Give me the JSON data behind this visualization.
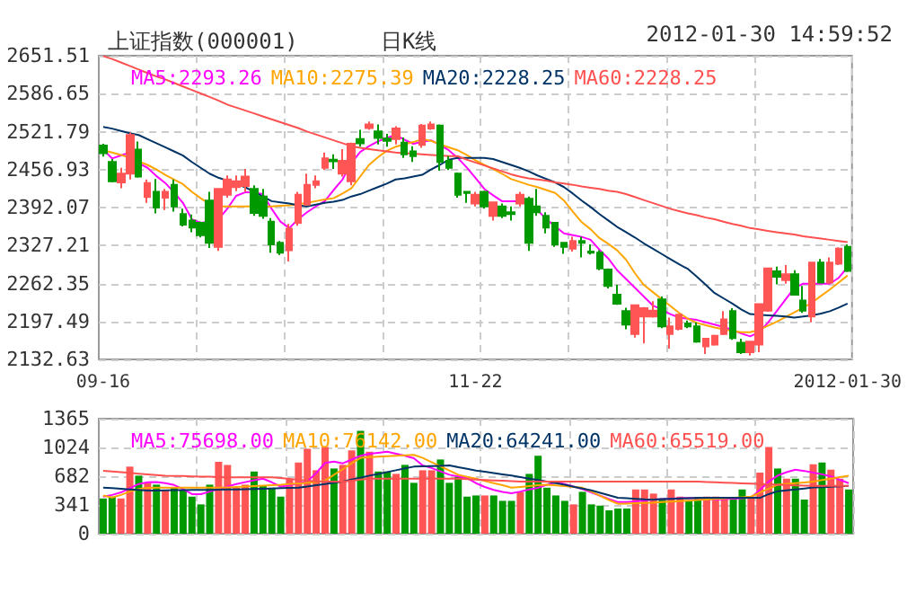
{
  "chart_data": [
    {
      "type": "candlestick",
      "title": "上证指数(000001)",
      "subtitle": "日K线",
      "annotations": [
        "2012-01-30 14:59:52"
      ],
      "categories": [
        "09-16",
        null,
        null,
        null,
        null,
        null,
        null,
        null,
        null,
        null,
        null,
        null,
        null,
        null,
        null,
        null,
        null,
        null,
        null,
        null,
        null,
        null,
        null,
        null,
        null,
        null,
        null,
        null,
        null,
        null,
        null,
        null,
        null,
        null,
        null,
        null,
        null,
        null,
        null,
        null,
        null,
        null,
        "11-22",
        null,
        null,
        null,
        null,
        null,
        null,
        null,
        null,
        null,
        null,
        null,
        null,
        null,
        null,
        null,
        null,
        null,
        null,
        null,
        null,
        null,
        null,
        null,
        null,
        null,
        null,
        null,
        null,
        null,
        null,
        null,
        null,
        null,
        null,
        null,
        null,
        null,
        null,
        null,
        null,
        null,
        "2012-01-30"
      ],
      "ohlc": [
        [
          2498,
          2501,
          2479,
          2485
        ],
        [
          2470,
          2475,
          2435,
          2437
        ],
        [
          2435,
          2460,
          2425,
          2450
        ],
        [
          2450,
          2520,
          2440,
          2516
        ],
        [
          2491,
          2505,
          2443,
          2445
        ],
        [
          2410,
          2440,
          2400,
          2434
        ],
        [
          2419,
          2441,
          2382,
          2392
        ],
        [
          2409,
          2424,
          2388,
          2419
        ],
        [
          2431,
          2440,
          2385,
          2394
        ],
        [
          2381,
          2390,
          2360,
          2363
        ],
        [
          2370,
          2380,
          2350,
          2358
        ],
        [
          2366,
          2368,
          2341,
          2345
        ],
        [
          2404,
          2419,
          2323,
          2332
        ],
        [
          2325,
          2424,
          2318,
          2424
        ],
        [
          2414,
          2447,
          2409,
          2440
        ],
        [
          2427,
          2447,
          2420,
          2437
        ],
        [
          2429,
          2458,
          2419,
          2445
        ],
        [
          2424,
          2430,
          2378,
          2383
        ],
        [
          2411,
          2424,
          2373,
          2378
        ],
        [
          2368,
          2374,
          2315,
          2329
        ],
        [
          2332,
          2335,
          2311,
          2315
        ],
        [
          2319,
          2364,
          2300,
          2356
        ],
        [
          2366,
          2419,
          2361,
          2414
        ],
        [
          2397,
          2450,
          2397,
          2431
        ],
        [
          2431,
          2447,
          2425,
          2437
        ],
        [
          2460,
          2486,
          2456,
          2476
        ],
        [
          2474,
          2483,
          2458,
          2471
        ],
        [
          2450,
          2492,
          2445,
          2472
        ],
        [
          2437,
          2503,
          2430,
          2501
        ],
        [
          2509,
          2525,
          2496,
          2502
        ],
        [
          2528,
          2539,
          2525,
          2534
        ],
        [
          2522,
          2534,
          2500,
          2511
        ],
        [
          2510,
          2518,
          2496,
          2506
        ],
        [
          2509,
          2531,
          2500,
          2527
        ],
        [
          2503,
          2512,
          2477,
          2483
        ],
        [
          2488,
          2497,
          2470,
          2480
        ],
        [
          2499,
          2535,
          2494,
          2532
        ],
        [
          2527,
          2539,
          2525,
          2534
        ],
        [
          2532,
          2534,
          2455,
          2470
        ],
        [
          2472,
          2480,
          2456,
          2460
        ],
        [
          2450,
          2452,
          2409,
          2414
        ],
        [
          2419,
          2420,
          2400,
          2417
        ],
        [
          2399,
          2419,
          2394,
          2414
        ],
        [
          2419,
          2421,
          2390,
          2394
        ],
        [
          2378,
          2401,
          2370,
          2401
        ],
        [
          2394,
          2399,
          2374,
          2378
        ],
        [
          2384,
          2394,
          2370,
          2381
        ],
        [
          2399,
          2419,
          2394,
          2414
        ],
        [
          2407,
          2411,
          2318,
          2332
        ],
        [
          2394,
          2424,
          2378,
          2384
        ],
        [
          2378,
          2384,
          2348,
          2358
        ],
        [
          2366,
          2366,
          2325,
          2329
        ],
        [
          2332,
          2332,
          2313,
          2325
        ],
        [
          2322,
          2342,
          2317,
          2335
        ],
        [
          2335,
          2342,
          2307,
          2332
        ],
        [
          2317,
          2329,
          2312,
          2315
        ],
        [
          2315,
          2319,
          2285,
          2288
        ],
        [
          2286,
          2288,
          2254,
          2258
        ],
        [
          2243,
          2260,
          2226,
          2228
        ],
        [
          2215,
          2221,
          2184,
          2192
        ],
        [
          2176,
          2226,
          2170,
          2225
        ],
        [
          2206,
          2222,
          2160,
          2220
        ],
        [
          2206,
          2232,
          2204,
          2216
        ],
        [
          2235,
          2240,
          2186,
          2189
        ],
        [
          2176,
          2204,
          2151,
          2189
        ],
        [
          2185,
          2209,
          2182,
          2209
        ],
        [
          2194,
          2199,
          2186,
          2189
        ],
        [
          2189,
          2196,
          2161,
          2163
        ],
        [
          2155,
          2168,
          2142,
          2168
        ],
        [
          2158,
          2175,
          2156,
          2173
        ],
        [
          2176,
          2215,
          2174,
          2201
        ],
        [
          2215,
          2220,
          2166,
          2169
        ],
        [
          2161,
          2168,
          2142,
          2145
        ],
        [
          2145,
          2163,
          2139,
          2163
        ],
        [
          2158,
          2227,
          2145,
          2227
        ],
        [
          2216,
          2288,
          2214,
          2288
        ],
        [
          2283,
          2291,
          2261,
          2274
        ],
        [
          2268,
          2294,
          2262,
          2278
        ],
        [
          2278,
          2285,
          2243,
          2243
        ],
        [
          2233,
          2258,
          2212,
          2216
        ],
        [
          2206,
          2298,
          2196,
          2298
        ],
        [
          2298,
          2304,
          2264,
          2264
        ],
        [
          2264,
          2307,
          2262,
          2298
        ],
        [
          2296,
          2324,
          2294,
          2322
        ],
        [
          2325,
          2329,
          2282,
          2284
        ]
      ],
      "colors": [
        "#009900",
        "#009900",
        "#ff5555",
        "#ff5555",
        "#009900",
        "#ff5555",
        "#009900",
        "#ff5555",
        "#009900",
        "#009900",
        "#009900",
        "#009900",
        "#009900",
        "#ff5555",
        "#ff5555",
        "#ff5555",
        "#ff5555",
        "#009900",
        "#009900",
        "#009900",
        "#009900",
        "#ff5555",
        "#ff5555",
        "#ff5555",
        "#ff5555",
        "#ff5555",
        "#009900",
        "#ff5555",
        "#ff5555",
        "#009900",
        "#ff5555",
        "#009900",
        "#009900",
        "#ff5555",
        "#009900",
        "#009900",
        "#ff5555",
        "#ff5555",
        "#009900",
        "#009900",
        "#009900",
        "#009900",
        "#ff5555",
        "#009900",
        "#ff5555",
        "#009900",
        "#009900",
        "#ff5555",
        "#009900",
        "#009900",
        "#009900",
        "#009900",
        "#009900",
        "#ff5555",
        "#009900",
        "#009900",
        "#009900",
        "#009900",
        "#009900",
        "#009900",
        "#ff5555",
        "#ff5555",
        "#ff5555",
        "#009900",
        "#ff5555",
        "#ff5555",
        "#009900",
        "#009900",
        "#ff5555",
        "#ff5555",
        "#ff5555",
        "#009900",
        "#009900",
        "#ff5555",
        "#ff5555",
        "#ff5555",
        "#009900",
        "#ff5555",
        "#009900",
        "#009900",
        "#ff5555",
        "#009900",
        "#ff5555",
        "#ff5555",
        "#009900"
      ],
      "series": [
        {
          "type": "line",
          "name": "MA5:2293.26",
          "color": "#ff00ff",
          "values": [
            2491,
            2476,
            2481,
            2486,
            2468,
            2460,
            2446,
            2434,
            2418,
            2400,
            2372,
            2366,
            2368,
            2372,
            2390,
            2412,
            2418,
            2418,
            2415,
            2390,
            2368,
            2357,
            2372,
            2384,
            2394,
            2403,
            2422,
            2440,
            2468,
            2487,
            2497,
            2505,
            2511,
            2516,
            2508,
            2501,
            2504,
            2507,
            2499,
            2490,
            2477,
            2461,
            2443,
            2424,
            2413,
            2403,
            2403,
            2403,
            null,
            2388,
            2372,
            2360,
            2348,
            2345,
            2342,
            2337,
            2320,
            2305,
            2285,
            2270,
            2255,
            2240,
            2225,
            2218,
            2210,
            2204,
            2202,
            2200,
            2196,
            2192,
            2188,
            2183,
            2177,
            2172,
            2179,
            2195,
            2215,
            2235,
            2255,
            2262,
            2262,
            2262,
            2262,
            2272,
            2290
          ]
        },
        {
          "type": "line",
          "name": "MA10:2275.39",
          "color": "#ffa500",
          "values": [
            2490,
            2486,
            2482,
            2477,
            2471,
            2465,
            2457,
            2448,
            2440,
            2432,
            2419,
            2408,
            2398,
            2394,
            2394,
            2394,
            2394,
            2394,
            2394,
            2394,
            2395,
            2396,
            2398,
            2400,
            2403,
            2406,
            2408,
            2416,
            2425,
            2445,
            2465,
            2478,
            2489,
            2496,
            2500,
            2504,
            2509,
            2506,
            2500,
            2495,
            2490,
            2482,
            2473,
            2465,
            2458,
            2450,
            2441,
            2436,
            2431,
            2427,
            2422,
            2417,
            2404,
            2385,
            2367,
            2355,
            2340,
            2330,
            2319,
            2303,
            2280,
            2260,
            2248,
            2236,
            2224,
            2212,
            2202,
            2195,
            2191,
            2187,
            2184,
            2181,
            2179,
            2179,
            2183,
            2190,
            2197,
            2205,
            2213,
            2221,
            2230,
            2241,
            2252,
            2264,
            2276
          ]
        },
        {
          "type": "line",
          "name": "MA20:2228.25",
          "color": "#003366",
          "values": [
            2530,
            2527,
            2523,
            2519,
            2516,
            2509,
            2502,
            2495,
            2488,
            2481,
            2470,
            2460,
            2450,
            2443,
            2438,
            2432,
            2427,
            2419,
            2411,
            2403,
            2401,
            2399,
            2396,
            2394,
            2397,
            2400,
            2402,
            2405,
            2411,
            2415,
            2421,
            2427,
            2433,
            2440,
            2442,
            2445,
            2448,
            2457,
            2465,
            2474,
            2477,
            2477,
            2477,
            2477,
            2475,
            2470,
            2465,
            2460,
            2454,
            2447,
            2441,
            2435,
            2427,
            2416,
            2404,
            2393,
            2381,
            2370,
            2359,
            2350,
            2341,
            2331,
            2322,
            2313,
            2304,
            2295,
            2287,
            2274,
            2260,
            2246,
            2237,
            2228,
            2218,
            2210,
            2209,
            2208,
            2207,
            2206,
            2204,
            2206,
            2208,
            2211,
            2215,
            2221,
            2228
          ]
        },
        {
          "type": "line",
          "name": "MA60:2228.25",
          "color": "#ff5050",
          "values": [
            2651,
            2646,
            2640,
            2634,
            2628,
            2622,
            2616,
            2611,
            2605,
            2599,
            2593,
            2587,
            2581,
            2575,
            2568,
            2563,
            2558,
            2553,
            2548,
            2543,
            2538,
            2533,
            2528,
            2522,
            2517,
            2512,
            2507,
            2502,
            2497,
            2494,
            2492,
            2490,
            2488,
            2486,
            2485,
            2484,
            2483,
            2482,
            2481,
            2480,
            2480,
            2474,
            2469,
            2464,
            2459,
            2454,
            2449,
            2445,
            2442,
            2440,
            2438,
            2435,
            2433,
            2431,
            2428,
            2426,
            2424,
            2421,
            2419,
            2415,
            2410,
            2405,
            2400,
            2395,
            2390,
            2386,
            2382,
            2379,
            2375,
            2372,
            2368,
            2364,
            2361,
            2357,
            2355,
            2352,
            2350,
            2348,
            2346,
            2343,
            2341,
            2339,
            2337,
            2335,
            2333
          ]
        }
      ],
      "ylim": [
        2132.63,
        2651.51
      ],
      "yticks": [
        2132.63,
        2197.49,
        2262.35,
        2327.21,
        2392.07,
        2456.93,
        2521.79,
        2586.65,
        2651.51
      ],
      "grid": true,
      "legend": "top"
    },
    {
      "type": "bar",
      "categories": [
        null,
        null,
        null,
        null,
        null,
        null,
        null,
        null,
        null,
        null,
        null,
        null,
        null,
        null,
        null,
        null,
        null,
        null,
        null,
        null,
        null,
        null,
        null,
        null,
        null,
        null,
        null,
        null,
        null,
        null,
        null,
        null,
        null,
        null,
        null,
        null,
        null,
        null,
        null,
        null,
        null,
        null,
        null,
        null,
        null,
        null,
        null,
        null,
        null,
        null,
        null,
        null,
        null,
        null,
        null,
        null,
        null,
        null,
        null,
        null,
        null,
        null,
        null,
        null,
        null,
        null,
        null,
        null,
        null,
        null,
        null,
        null,
        null,
        null,
        null,
        null,
        null,
        null,
        null,
        null,
        null,
        null,
        null,
        null,
        null
      ],
      "series": [
        {
          "values": [
            418,
            440,
            418,
            796,
            689,
            604,
            582,
            512,
            546,
            512,
            440,
            348,
            582,
            853,
            817,
            546,
            582,
            738,
            575,
            546,
            440,
            653,
            845,
            1009,
            753,
            1030,
            774,
            817,
            988,
            1222,
            973,
            738,
            738,
            710,
            817,
            604,
            753,
            753,
            881,
            604,
            675,
            440,
            454,
            454,
            454,
            390,
            390,
            497,
            710,
            924,
            546,
            454,
            390,
            348,
            497,
            348,
            333,
            277,
            299,
            299,
            525,
            525,
            476,
            418,
            525,
            440,
            384,
            418,
            440,
            440,
            426,
            426,
            525,
            426,
            725,
            1030,
            774,
            653,
            653,
            405,
            824,
            845,
            760,
            653,
            525
          ],
          "colors": [
            "#009900",
            "#009900",
            "#ff5555",
            "#ff5555",
            "#009900",
            "#ff5555",
            "#009900",
            "#ff5555",
            "#009900",
            "#009900",
            "#009900",
            "#009900",
            "#009900",
            "#ff5555",
            "#ff5555",
            "#ff5555",
            "#ff5555",
            "#009900",
            "#009900",
            "#009900",
            "#009900",
            "#ff5555",
            "#ff5555",
            "#ff5555",
            "#ff5555",
            "#ff5555",
            "#009900",
            "#ff5555",
            "#ff5555",
            "#009900",
            "#ff5555",
            "#009900",
            "#009900",
            "#ff5555",
            "#009900",
            "#009900",
            "#ff5555",
            "#ff5555",
            "#009900",
            "#009900",
            "#009900",
            "#009900",
            "#009900",
            "#ff5555",
            "#009900",
            "#009900",
            "#009900",
            "#ff5555",
            "#009900",
            "#009900",
            "#009900",
            "#009900",
            "#009900",
            "#ff5555",
            "#009900",
            "#009900",
            "#009900",
            "#009900",
            "#009900",
            "#009900",
            "#ff5555",
            "#ff5555",
            "#ff5555",
            "#009900",
            "#ff5555",
            "#ff5555",
            "#009900",
            "#009900",
            "#ff5555",
            "#ff5555",
            "#ff5555",
            "#009900",
            "#009900",
            "#ff5555",
            "#ff5555",
            "#ff5555",
            "#009900",
            "#ff5555",
            "#009900",
            "#009900",
            "#ff5555",
            "#009900",
            "#ff5555",
            "#ff5555",
            "#009900"
          ]
        },
        {
          "type": "line",
          "name": "MA5:75698.00",
          "color": "#ff00ff",
          "values": [
            440,
            460,
            490,
            540,
            590,
            610,
            612,
            600,
            578,
            530,
            470,
            470,
            500,
            530,
            560,
            590,
            612,
            635,
            653,
            610,
            560,
            575,
            600,
            620,
            720,
            840,
            855,
            835,
            880,
            925,
            950,
            960,
            972,
            950,
            925,
            895,
            810,
            780,
            740,
            700,
            680,
            660,
            600,
            555,
            520,
            495,
            480,
            500,
            525,
            545,
            580,
            610,
            590,
            560,
            530,
            490,
            450,
            410,
            375,
            375,
            385,
            395,
            405,
            410,
            415,
            420,
            425,
            420,
            412,
            406,
            410,
            415,
            420,
            430,
            520,
            620,
            690,
            730,
            760,
            745,
            725,
            705,
            680,
            640,
            600
          ]
        },
        {
          "type": "line",
          "name": "MA10:76142.00",
          "color": "#ffa500",
          "values": [
            454,
            430,
            460,
            500,
            530,
            545,
            546,
            546,
            546,
            546,
            546,
            546,
            546,
            546,
            550,
            555,
            560,
            566,
            571,
            576,
            580,
            590,
            598,
            606,
            614,
            630,
            700,
            765,
            835,
            900,
            910,
            915,
            920,
            925,
            930,
            935,
            900,
            850,
            800,
            750,
            700,
            675,
            653,
            625,
            600,
            575,
            546,
            555,
            565,
            575,
            582,
            573,
            564,
            555,
            546,
            500,
            450,
            400,
            355,
            358,
            362,
            366,
            369,
            375,
            381,
            387,
            393,
            399,
            405,
            412,
            419,
            426,
            433,
            440,
            490,
            535,
            582,
            591,
            600,
            609,
            618,
            636,
            653,
            671,
            689
          ]
        },
        {
          "type": "line",
          "name": "MA20:64241.00",
          "color": "#003366",
          "values": [
            546,
            540,
            533,
            526,
            519,
            512,
            513,
            515,
            516,
            518,
            519,
            520,
            521,
            523,
            524,
            525,
            528,
            531,
            534,
            537,
            540,
            543,
            546,
            560,
            575,
            590,
            604,
            618,
            642,
            665,
            689,
            710,
            732,
            753,
            775,
            796,
            800,
            803,
            806,
            810,
            790,
            770,
            750,
            735,
            720,
            705,
            690,
            672,
            654,
            636,
            618,
            600,
            582,
            558,
            535,
            515,
            485,
            455,
            426,
            420,
            414,
            408,
            406,
            410,
            414,
            418,
            422,
            426,
            426,
            426,
            426,
            426,
            426,
            426,
            426,
            470,
            505,
            515,
            525,
            536,
            548,
            552,
            557,
            562,
            568
          ]
        },
        {
          "type": "line",
          "name": "MA60:65519.00",
          "color": "#ff5050",
          "values": [
            746,
            738,
            730,
            722,
            713,
            705,
            697,
            689,
            686,
            684,
            681,
            678,
            676,
            673,
            670,
            668,
            668,
            668,
            668,
            668,
            660,
            650,
            640,
            630,
            620,
            618,
            618,
            618,
            630,
            642,
            653,
            653,
            653,
            653,
            653,
            653,
            653,
            653,
            653,
            653,
            653,
            648,
            643,
            638,
            633,
            628,
            623,
            618,
            618,
            618,
            618,
            618,
            618,
            618,
            618,
            618,
            618,
            618,
            618,
            618,
            618,
            618,
            618,
            618,
            618,
            618,
            618,
            618,
            614,
            610,
            606,
            602,
            598,
            594,
            590,
            586,
            582,
            578,
            574,
            570,
            568,
            568,
            568,
            568,
            568
          ]
        }
      ],
      "ylim": [
        0,
        1365
      ],
      "yticks": [
        0,
        341,
        682,
        1024,
        1365
      ],
      "grid": true,
      "legend": "top",
      "tick_labels": "y"
    }
  ]
}
